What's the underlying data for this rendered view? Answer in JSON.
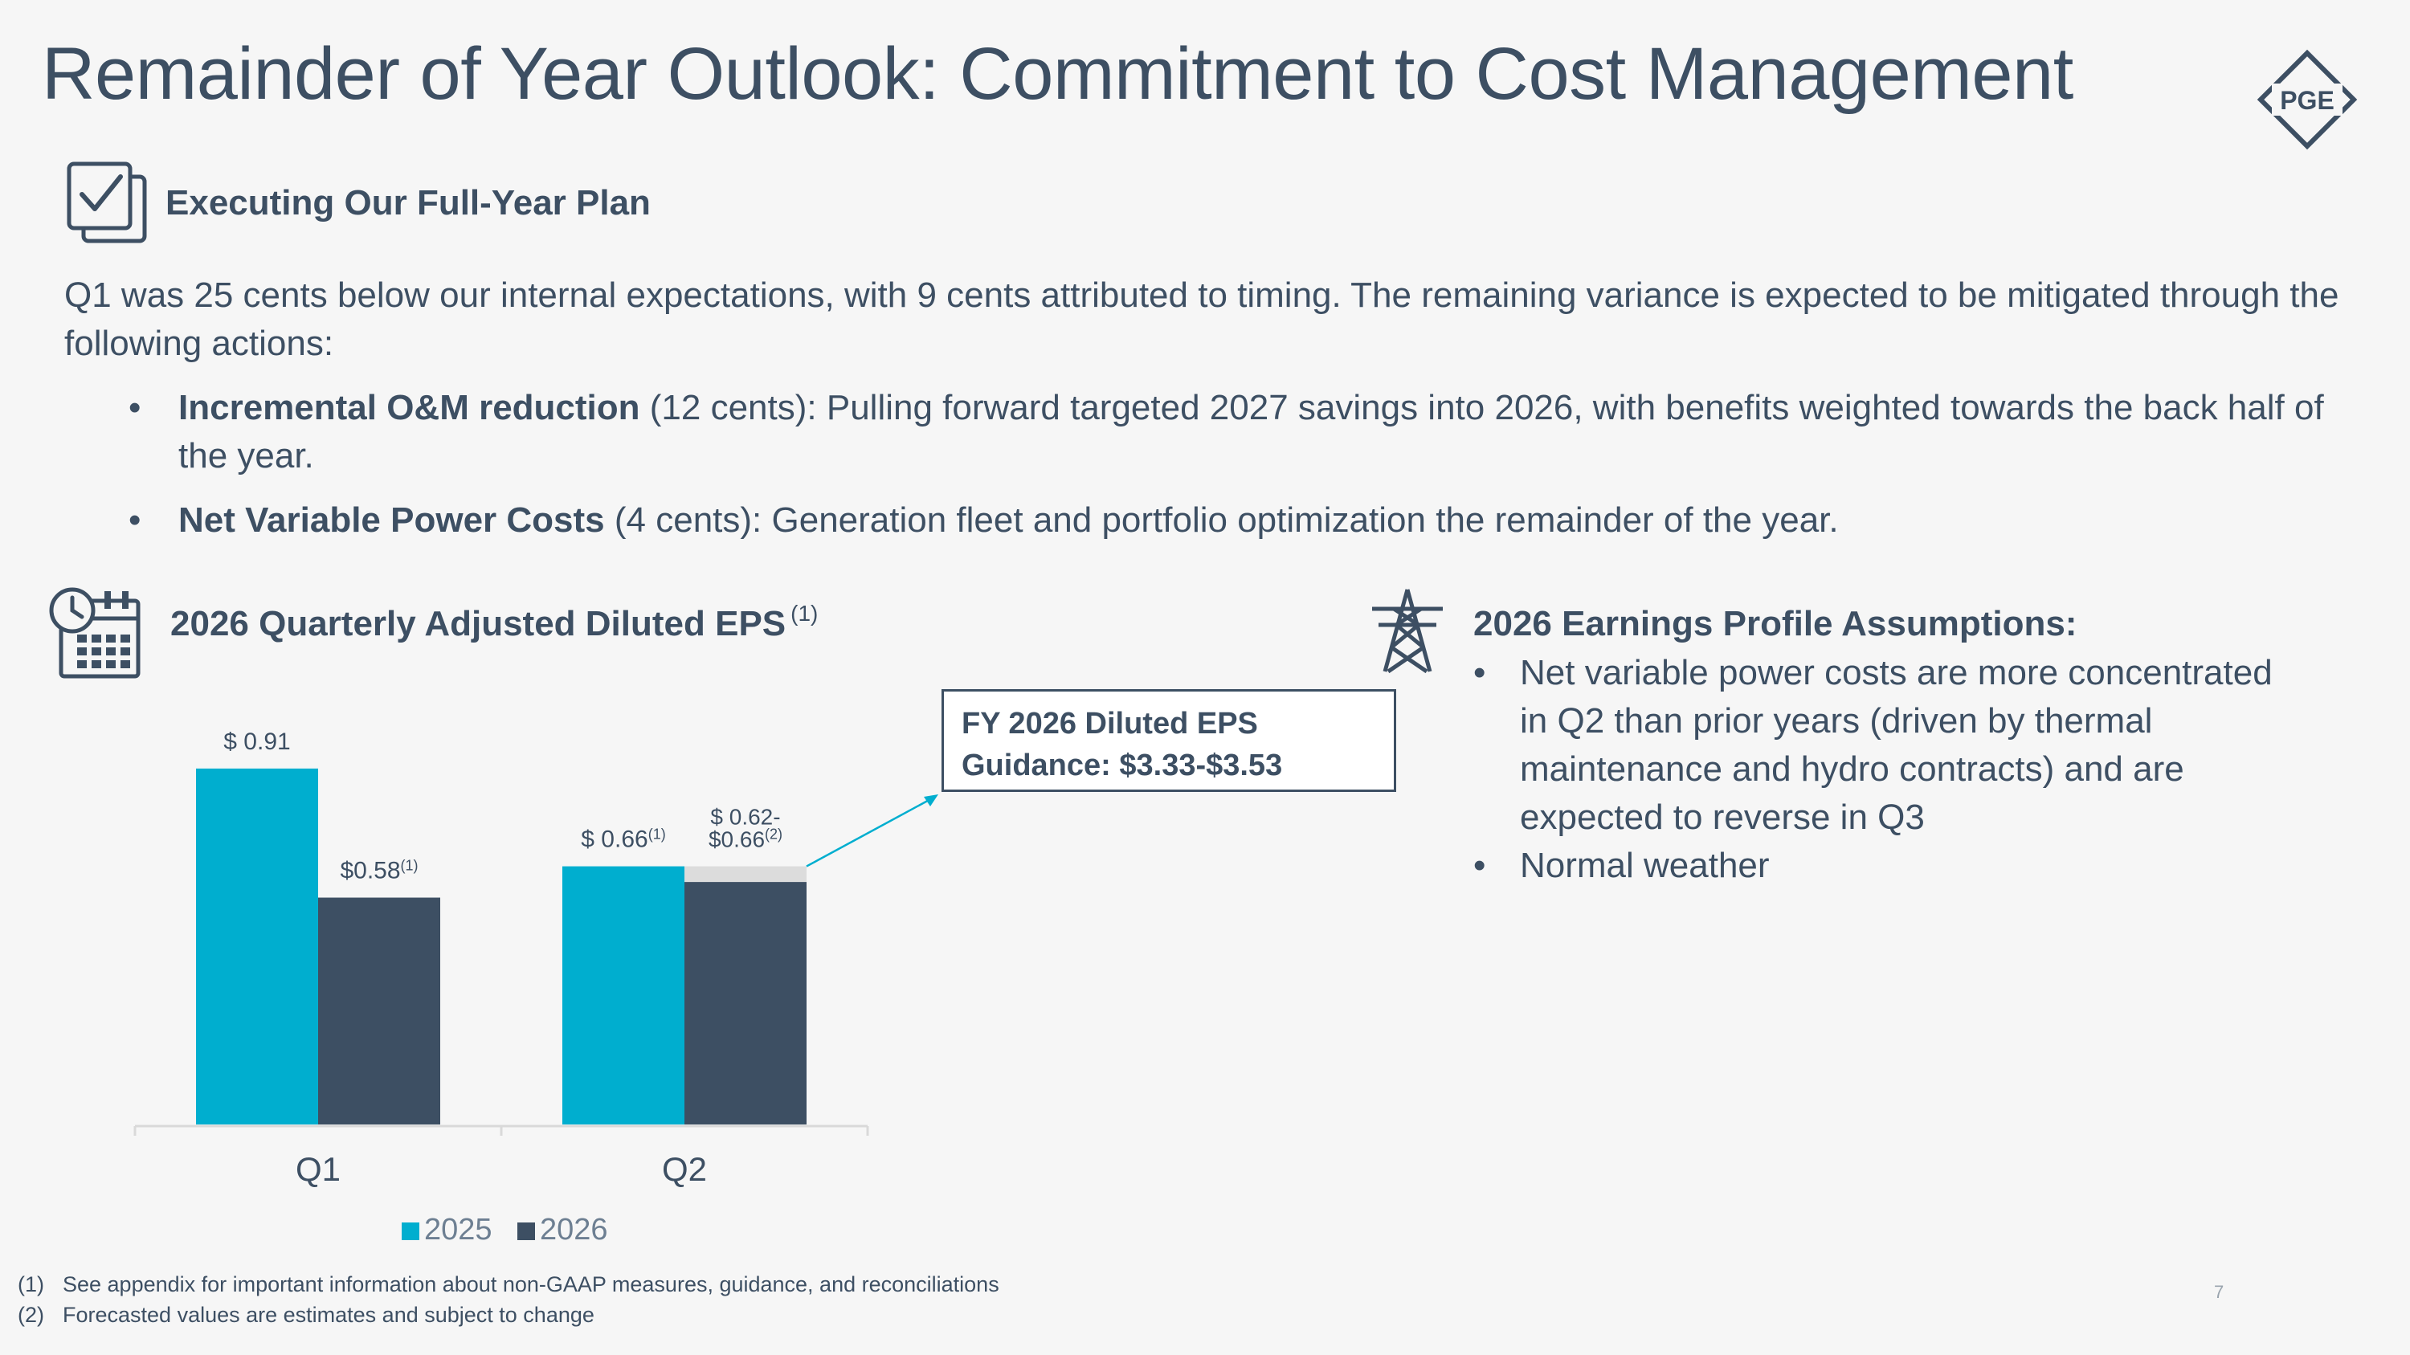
{
  "title": "Remainder of Year Outlook: Commitment to Cost Management",
  "logo": {
    "text": "PGE",
    "icon": "pge-logo-icon"
  },
  "plan": {
    "icon": "checklist-icon",
    "heading": "Executing Our Full-Year Plan",
    "intro": "Q1 was 25 cents below our internal expectations, with 9 cents attributed to timing. The remaining variance is expected to be mitigated through the following actions:",
    "bullets": [
      {
        "bold": "Incremental O&M reduction",
        "text": " (12 cents): Pulling forward targeted 2027 savings into 2026, with benefits weighted towards the back half of the year."
      },
      {
        "bold": "Net Variable Power Costs",
        "text": " (4 cents): Generation fleet and portfolio optimization the remainder of the year."
      }
    ]
  },
  "eps_section": {
    "icon": "calendar-clock-icon",
    "heading": "2026 Quarterly Adjusted Diluted EPS",
    "heading_note": "(1)"
  },
  "guidance": {
    "line1": "FY 2026 Diluted EPS",
    "line2": "Guidance: $3.33-$3.53"
  },
  "assumptions": {
    "icon": "transmission-tower-icon",
    "heading": "2026 Earnings Profile Assumptions:",
    "items": [
      "Net variable power costs are more concentrated in Q2 than prior years (driven by thermal maintenance and hydro contracts) and are expected to reverse in Q3",
      "Normal weather"
    ]
  },
  "chart_data": {
    "type": "bar",
    "title": "2026 Quarterly Adjusted Diluted EPS",
    "categories": [
      "Q1",
      "Q2"
    ],
    "series": [
      {
        "name": "2025",
        "color": "#00aecf",
        "values": [
          0.91,
          0.66
        ]
      },
      {
        "name": "2026",
        "color": "#3d4f63",
        "values": [
          0.58,
          0.62
        ],
        "range_high": [
          null,
          0.66
        ],
        "range_color": "#dcdcdc"
      }
    ],
    "data_labels": [
      [
        {
          "text": "$ 0.91",
          "note": ""
        },
        {
          "text": "$ 0.66",
          "note": "(1)"
        }
      ],
      [
        {
          "text": "$0.58",
          "note": "(1)"
        },
        {
          "line1": "$ 0.62-",
          "text": "$0.66",
          "note": "(2)"
        }
      ]
    ],
    "ylim": [
      0,
      1.0
    ],
    "legend_position": "bottom",
    "grid": false
  },
  "footnotes": [
    {
      "num": "(1)",
      "text": "See appendix for important information about non-GAAP measures, guidance, and reconciliations"
    },
    {
      "num": "(2)",
      "text": "Forecasted values are estimates and subject to change"
    }
  ],
  "page_number": "7"
}
